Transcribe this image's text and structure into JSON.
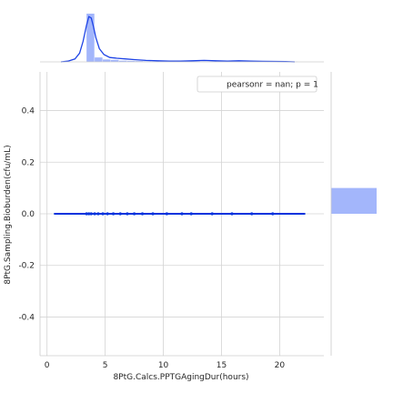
{
  "chart_data": {
    "type": "jointplot",
    "xlabel": "8PtG.Calcs.PPTGAgingDur(hours)",
    "ylabel": "8PtG.Sampling.Bioburden(cfu/mL)",
    "xlim": [
      -0.6,
      23.8
    ],
    "ylim": [
      -0.55,
      0.55
    ],
    "xticks": [
      0,
      5,
      10,
      15,
      20
    ],
    "yticks": [
      -0.4,
      -0.2,
      0.0,
      0.2,
      0.4
    ],
    "grid": true,
    "legend": {
      "text": "pearsonr = nan; p = 1",
      "placement": "top-right"
    },
    "colors": {
      "points": "#0033dd",
      "hist": "#a3b6fb",
      "kde": "#1f44e6"
    },
    "scatter": {
      "x": [
        3.4,
        3.6,
        3.8,
        4.1,
        4.4,
        4.8,
        5.2,
        5.7,
        6.3,
        6.9,
        7.5,
        8.2,
        9.1,
        10.3,
        11.6,
        12.4,
        14.2,
        15.9,
        17.6,
        19.4
      ],
      "y": [
        0,
        0,
        0,
        0,
        0,
        0,
        0,
        0,
        0,
        0,
        0,
        0,
        0,
        0,
        0,
        0,
        0,
        0,
        0,
        0
      ]
    },
    "regression_line": {
      "x": [
        0.6,
        22.2
      ],
      "y": [
        0,
        0
      ]
    },
    "x_marginal": {
      "bins": [
        {
          "x0": 3.4,
          "x1": 4.1,
          "count": 240
        },
        {
          "x0": 4.1,
          "x1": 4.8,
          "count": 22
        },
        {
          "x0": 4.8,
          "x1": 5.5,
          "count": 12
        },
        {
          "x0": 5.5,
          "x1": 6.2,
          "count": 10
        },
        {
          "x0": 6.2,
          "x1": 6.9,
          "count": 6
        },
        {
          "x0": 6.9,
          "x1": 7.6,
          "count": 5
        },
        {
          "x0": 7.6,
          "x1": 8.3,
          "count": 4
        },
        {
          "x0": 8.3,
          "x1": 9.0,
          "count": 3
        },
        {
          "x0": 9.0,
          "x1": 9.7,
          "count": 2
        },
        {
          "x0": 9.7,
          "x1": 10.4,
          "count": 2
        },
        {
          "x0": 10.4,
          "x1": 11.1,
          "count": 2
        },
        {
          "x0": 11.1,
          "x1": 11.8,
          "count": 2
        },
        {
          "x0": 11.8,
          "x1": 12.5,
          "count": 2
        },
        {
          "x0": 12.5,
          "x1": 13.2,
          "count": 3
        },
        {
          "x0": 13.2,
          "x1": 13.9,
          "count": 2
        },
        {
          "x0": 13.9,
          "x1": 14.6,
          "count": 2
        },
        {
          "x0": 14.6,
          "x1": 15.3,
          "count": 1
        },
        {
          "x0": 15.3,
          "x1": 16.0,
          "count": 3
        },
        {
          "x0": 16.0,
          "x1": 16.7,
          "count": 2
        },
        {
          "x0": 16.7,
          "x1": 17.4,
          "count": 1
        },
        {
          "x0": 17.4,
          "x1": 18.1,
          "count": 1
        },
        {
          "x0": 18.1,
          "x1": 18.8,
          "count": 1
        },
        {
          "x0": 18.8,
          "x1": 19.5,
          "count": 2
        },
        {
          "x0": 19.5,
          "x1": 20.2,
          "count": 1
        },
        {
          "x0": 20.2,
          "x1": 20.9,
          "count": 1
        },
        {
          "x0": 20.9,
          "x1": 21.6,
          "count": 1
        }
      ],
      "kde_x": [
        1.2,
        1.8,
        2.4,
        2.8,
        3.1,
        3.4,
        3.6,
        3.8,
        4.0,
        4.2,
        4.5,
        4.9,
        5.4,
        6.0,
        6.8,
        7.6,
        8.5,
        9.5,
        10.5,
        11.5,
        12.5,
        13.5,
        14.5,
        15.5,
        16.5,
        17.5,
        18.5,
        19.5,
        20.5,
        21.3
      ],
      "kde_y": [
        0.0,
        0.01,
        0.04,
        0.12,
        0.28,
        0.5,
        0.62,
        0.6,
        0.48,
        0.33,
        0.18,
        0.1,
        0.06,
        0.05,
        0.04,
        0.03,
        0.02,
        0.015,
        0.01,
        0.01,
        0.015,
        0.02,
        0.015,
        0.01,
        0.015,
        0.01,
        0.008,
        0.006,
        0.004,
        0.0
      ],
      "kde_ymax": 0.66
    },
    "y_marginal": {
      "bins": [
        {
          "y0": 0.0,
          "y1": 0.1,
          "count": 1
        }
      ]
    }
  }
}
